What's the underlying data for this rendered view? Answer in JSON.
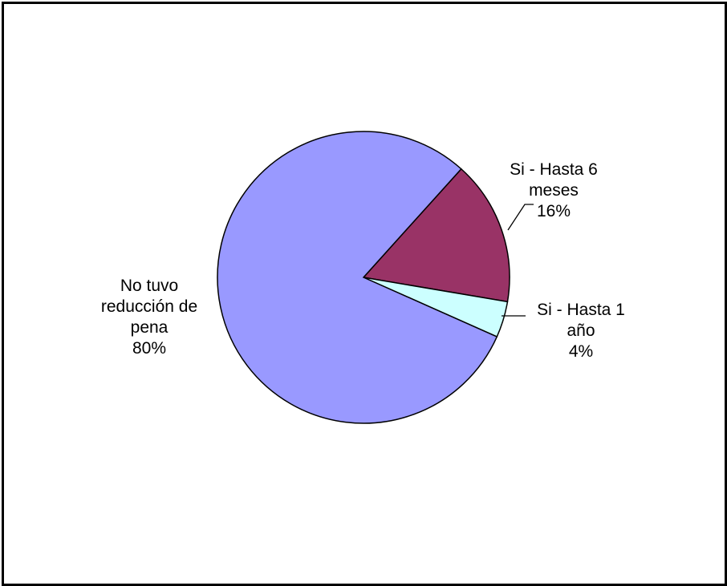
{
  "chart_data": {
    "type": "pie",
    "title": "",
    "slices": [
      {
        "label_lines": [
          "Si - Hasta 6",
          "meses"
        ],
        "percent_label": "16%",
        "value": 16,
        "color": "#993366"
      },
      {
        "label_lines": [
          "Si - Hasta 1",
          "año"
        ],
        "percent_label": "4%",
        "value": 4,
        "color": "#ccffff"
      },
      {
        "label_lines": [
          "No tuvo",
          "reducción de",
          "pena"
        ],
        "percent_label": "80%",
        "value": 80,
        "color": "#9999ff"
      }
    ],
    "start_angle_deg": 42,
    "direction": "clockwise",
    "legend": "none",
    "data_labels": "outside"
  }
}
